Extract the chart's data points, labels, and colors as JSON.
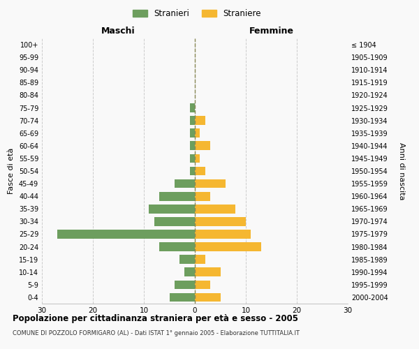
{
  "age_groups": [
    "0-4",
    "5-9",
    "10-14",
    "15-19",
    "20-24",
    "25-29",
    "30-34",
    "35-39",
    "40-44",
    "45-49",
    "50-54",
    "55-59",
    "60-64",
    "65-69",
    "70-74",
    "75-79",
    "80-84",
    "85-89",
    "90-94",
    "95-99",
    "100+"
  ],
  "birth_years": [
    "2000-2004",
    "1995-1999",
    "1990-1994",
    "1985-1989",
    "1980-1984",
    "1975-1979",
    "1970-1974",
    "1965-1969",
    "1960-1964",
    "1955-1959",
    "1950-1954",
    "1945-1949",
    "1940-1944",
    "1935-1939",
    "1930-1934",
    "1925-1929",
    "1920-1924",
    "1915-1919",
    "1910-1914",
    "1905-1909",
    "≤ 1904"
  ],
  "maschi": [
    5,
    4,
    2,
    3,
    7,
    27,
    8,
    9,
    7,
    4,
    1,
    1,
    1,
    1,
    1,
    1,
    0,
    0,
    0,
    0,
    0
  ],
  "femmine": [
    5,
    3,
    5,
    2,
    13,
    11,
    10,
    8,
    3,
    6,
    2,
    1,
    3,
    1,
    2,
    0,
    0,
    0,
    0,
    0,
    0
  ],
  "color_maschi": "#6d9e5e",
  "color_femmine": "#f5b731",
  "title_main": "Popolazione per cittadinanza straniera per età e sesso - 2005",
  "title_sub": "COMUNE DI POZZOLO FORMIGARO (AL) - Dati ISTAT 1° gennaio 2005 - Elaborazione TUTTITALIA.IT",
  "xlabel_left": "Maschi",
  "xlabel_right": "Femmine",
  "ylabel_left": "Fasce di età",
  "ylabel_right": "Anni di nascita",
  "legend_maschi": "Stranieri",
  "legend_femmine": "Straniere",
  "xlim": 30,
  "background_color": "#f9f9f9",
  "grid_color": "#cccccc"
}
